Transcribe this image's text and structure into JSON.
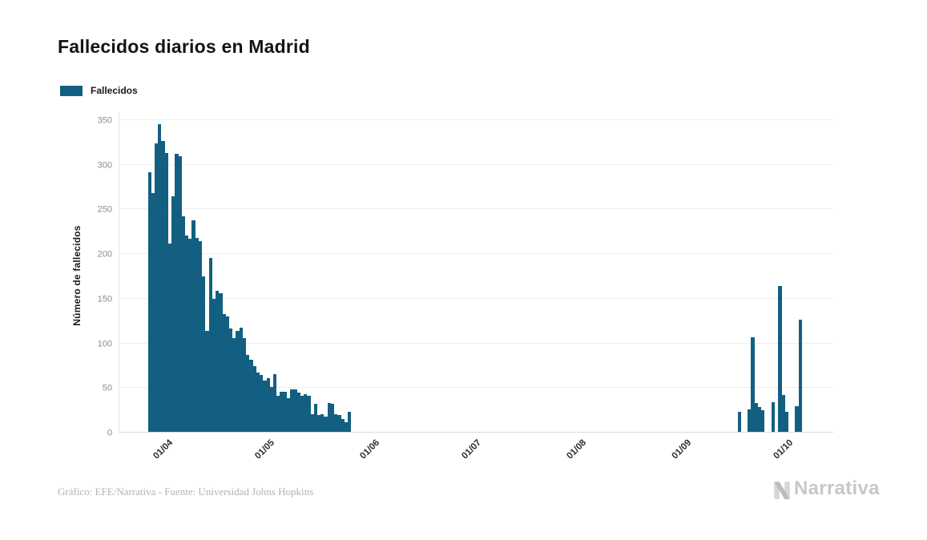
{
  "title": "Fallecidos diarios en Madrid",
  "legend": {
    "label": "Fallecidos",
    "color": "#135f82"
  },
  "footer": {
    "credit": "Gráfico: EFE/Narrativa - Fuente: Universidad Johns Hopkins"
  },
  "watermark": {
    "brand": "Narrativa"
  },
  "chart_data": {
    "type": "bar",
    "title": "Fallecidos diarios en Madrid",
    "xlabel": "",
    "ylabel": "Número de fallecidos",
    "series_name": "Fallecidos",
    "bar_color": "#135f82",
    "ylim": [
      0,
      350
    ],
    "y_ticks": [
      0,
      50,
      100,
      150,
      200,
      250,
      300,
      350
    ],
    "x_tick_labels": [
      "01/04",
      "01/05",
      "01/06",
      "01/07",
      "01/08",
      "01/09",
      "01/10"
    ],
    "grid": "horizontal",
    "legend_position": "top-left",
    "points": [
      {
        "date": "2020-03-26",
        "value": 291
      },
      {
        "date": "2020-03-27",
        "value": 267
      },
      {
        "date": "2020-03-28",
        "value": 323
      },
      {
        "date": "2020-03-29",
        "value": 345
      },
      {
        "date": "2020-03-30",
        "value": 326
      },
      {
        "date": "2020-03-31",
        "value": 312
      },
      {
        "date": "2020-04-01",
        "value": 211
      },
      {
        "date": "2020-04-02",
        "value": 264
      },
      {
        "date": "2020-04-03",
        "value": 311
      },
      {
        "date": "2020-04-04",
        "value": 309
      },
      {
        "date": "2020-04-05",
        "value": 241
      },
      {
        "date": "2020-04-06",
        "value": 220
      },
      {
        "date": "2020-04-07",
        "value": 216
      },
      {
        "date": "2020-04-08",
        "value": 237
      },
      {
        "date": "2020-04-09",
        "value": 217
      },
      {
        "date": "2020-04-10",
        "value": 214
      },
      {
        "date": "2020-04-11",
        "value": 174
      },
      {
        "date": "2020-04-12",
        "value": 113
      },
      {
        "date": "2020-04-13",
        "value": 195
      },
      {
        "date": "2020-04-14",
        "value": 149
      },
      {
        "date": "2020-04-15",
        "value": 158
      },
      {
        "date": "2020-04-16",
        "value": 155
      },
      {
        "date": "2020-04-17",
        "value": 132
      },
      {
        "date": "2020-04-18",
        "value": 129
      },
      {
        "date": "2020-04-19",
        "value": 116
      },
      {
        "date": "2020-04-20",
        "value": 105
      },
      {
        "date": "2020-04-21",
        "value": 113
      },
      {
        "date": "2020-04-22",
        "value": 117
      },
      {
        "date": "2020-04-23",
        "value": 105
      },
      {
        "date": "2020-04-24",
        "value": 86
      },
      {
        "date": "2020-04-25",
        "value": 81
      },
      {
        "date": "2020-04-26",
        "value": 74
      },
      {
        "date": "2020-04-27",
        "value": 66
      },
      {
        "date": "2020-04-28",
        "value": 64
      },
      {
        "date": "2020-04-29",
        "value": 57
      },
      {
        "date": "2020-04-30",
        "value": 60
      },
      {
        "date": "2020-05-01",
        "value": 50
      },
      {
        "date": "2020-05-02",
        "value": 65
      },
      {
        "date": "2020-05-03",
        "value": 40
      },
      {
        "date": "2020-05-04",
        "value": 45
      },
      {
        "date": "2020-05-05",
        "value": 45
      },
      {
        "date": "2020-05-06",
        "value": 38
      },
      {
        "date": "2020-05-07",
        "value": 48
      },
      {
        "date": "2020-05-08",
        "value": 48
      },
      {
        "date": "2020-05-09",
        "value": 44
      },
      {
        "date": "2020-05-10",
        "value": 40
      },
      {
        "date": "2020-05-11",
        "value": 42
      },
      {
        "date": "2020-05-12",
        "value": 40
      },
      {
        "date": "2020-05-13",
        "value": 20
      },
      {
        "date": "2020-05-14",
        "value": 31
      },
      {
        "date": "2020-05-15",
        "value": 19
      },
      {
        "date": "2020-05-16",
        "value": 20
      },
      {
        "date": "2020-05-17",
        "value": 17
      },
      {
        "date": "2020-05-18",
        "value": 32
      },
      {
        "date": "2020-05-19",
        "value": 31
      },
      {
        "date": "2020-05-20",
        "value": 20
      },
      {
        "date": "2020-05-21",
        "value": 19
      },
      {
        "date": "2020-05-22",
        "value": 14
      },
      {
        "date": "2020-05-23",
        "value": 11
      },
      {
        "date": "2020-05-24",
        "value": 22
      },
      {
        "date": "2020-09-16",
        "value": 22
      },
      {
        "date": "2020-09-19",
        "value": 25
      },
      {
        "date": "2020-09-20",
        "value": 106
      },
      {
        "date": "2020-09-21",
        "value": 32
      },
      {
        "date": "2020-09-22",
        "value": 28
      },
      {
        "date": "2020-09-23",
        "value": 24
      },
      {
        "date": "2020-09-26",
        "value": 33
      },
      {
        "date": "2020-09-28",
        "value": 163
      },
      {
        "date": "2020-09-29",
        "value": 41
      },
      {
        "date": "2020-09-30",
        "value": 22
      },
      {
        "date": "2020-10-03",
        "value": 29
      },
      {
        "date": "2020-10-04",
        "value": 126
      }
    ]
  }
}
